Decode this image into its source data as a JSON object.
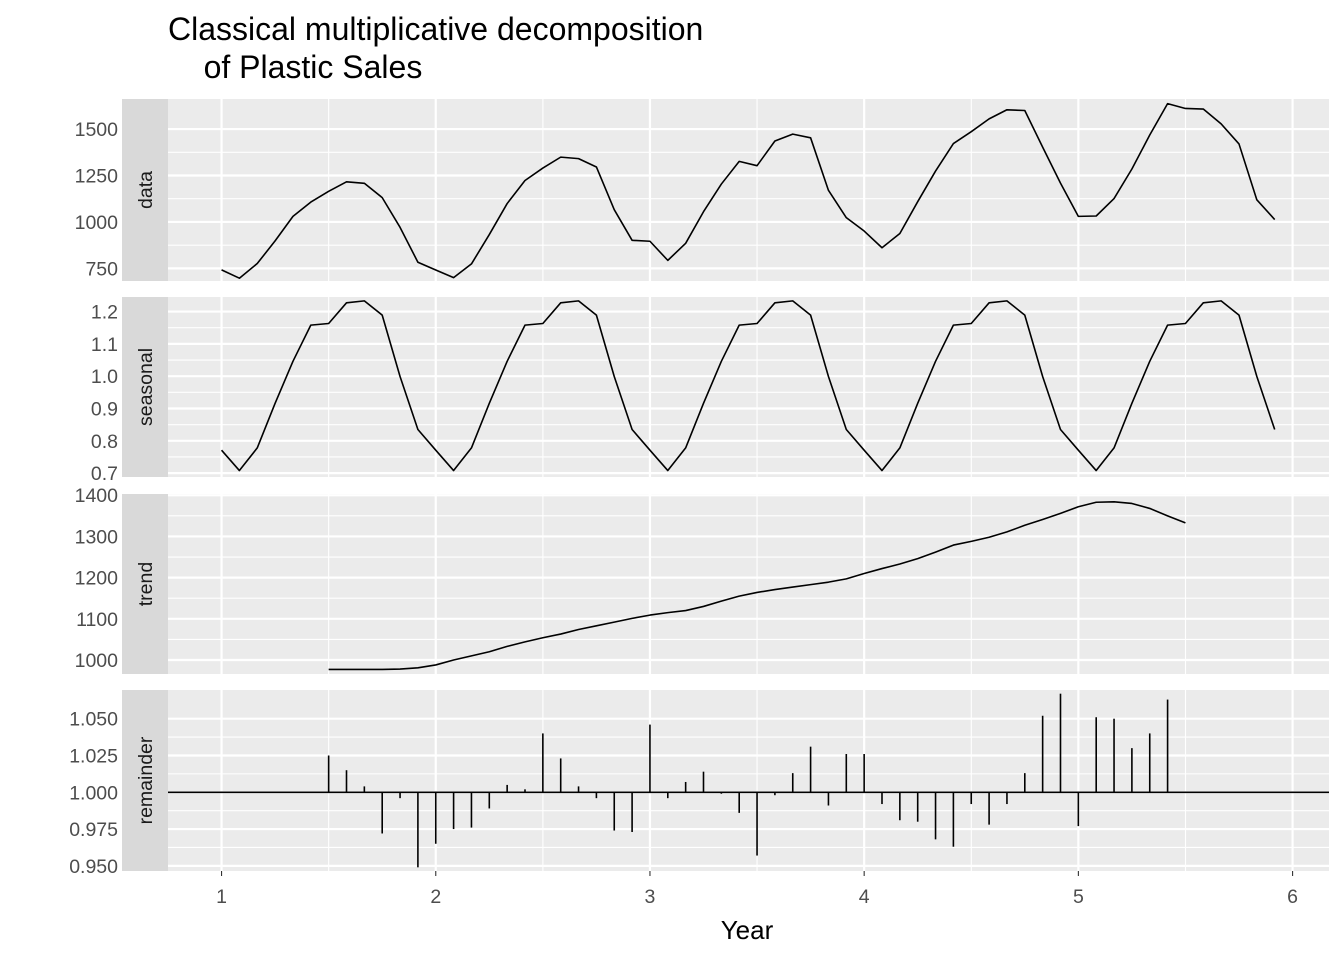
{
  "chart_data": {
    "type": "line",
    "title": "Classical multiplicative decomposition\n    of Plastic Sales",
    "xlabel": "Year",
    "x_ticks": [
      1,
      2,
      3,
      4,
      5,
      6
    ],
    "xlim": [
      0.75,
      6.17
    ],
    "x_start": 1,
    "x_step": 0.08333,
    "facets": [
      {
        "name": "data",
        "ylim": [
          682,
          1662
        ],
        "y_ticks": [
          750,
          1000,
          1250,
          1500
        ],
        "y_tick_labels": [
          "750",
          "1000",
          "1250",
          "1500"
        ],
        "style": "line",
        "values": [
          742,
          697,
          776,
          898,
          1030,
          1107,
          1165,
          1216,
          1208,
          1131,
          971,
          783,
          741,
          700,
          774,
          932,
          1099,
          1223,
          1290,
          1349,
          1341,
          1296,
          1066,
          901,
          896,
          793,
          885,
          1055,
          1204,
          1326,
          1303,
          1436,
          1473,
          1453,
          1170,
          1023,
          951,
          861,
          938,
          1109,
          1274,
          1422,
          1486,
          1555,
          1604,
          1600,
          1403,
          1209,
          1030,
          1032,
          1126,
          1285,
          1468,
          1637,
          1611,
          1608,
          1528,
          1420,
          1119,
          1013
        ]
      },
      {
        "name": "seasonal",
        "ylim": [
          0.688,
          1.245
        ],
        "y_ticks": [
          0.7,
          0.8,
          0.9,
          1.0,
          1.1,
          1.2
        ],
        "y_tick_labels": [
          "0.7",
          "0.8",
          "0.9",
          "1.0",
          "1.1",
          "1.2"
        ],
        "style": "line",
        "values": [
          0.771,
          0.708,
          0.778,
          0.916,
          1.046,
          1.158,
          1.163,
          1.227,
          1.233,
          1.189,
          0.999,
          0.835,
          0.771,
          0.708,
          0.778,
          0.916,
          1.046,
          1.158,
          1.163,
          1.227,
          1.233,
          1.189,
          0.999,
          0.835,
          0.771,
          0.708,
          0.778,
          0.916,
          1.046,
          1.158,
          1.163,
          1.227,
          1.233,
          1.189,
          0.999,
          0.835,
          0.771,
          0.708,
          0.778,
          0.916,
          1.046,
          1.158,
          1.163,
          1.227,
          1.233,
          1.189,
          0.999,
          0.835,
          0.771,
          0.708,
          0.778,
          0.916,
          1.046,
          1.158,
          1.163,
          1.227,
          1.233,
          1.189,
          0.999,
          0.835
        ]
      },
      {
        "name": "trend",
        "ylim": [
          966,
          1403
        ],
        "y_ticks": [
          1000,
          1100,
          1200,
          1300,
          1400
        ],
        "y_tick_labels": [
          "1000",
          "1100",
          "1200",
          "1300",
          "1400"
        ],
        "style": "line",
        "values": [
          null,
          null,
          null,
          null,
          null,
          null,
          977,
          977,
          977,
          977,
          978,
          981,
          988,
          1000,
          1010,
          1020,
          1033,
          1044,
          1054,
          1063,
          1074,
          1083,
          1092,
          1101,
          1109,
          1115,
          1120,
          1130,
          1143,
          1155,
          1164,
          1171,
          1177,
          1183,
          1189,
          1197,
          1210,
          1222,
          1233,
          1246,
          1262,
          1279,
          1288,
          1298,
          1311,
          1327,
          1341,
          1356,
          1372,
          1383,
          1384,
          1380,
          1368,
          1350,
          1333,
          null,
          null,
          null,
          null,
          null,
          null
        ]
      },
      {
        "name": "remainder",
        "ylim": [
          0.9465,
          1.0695
        ],
        "y_ticks": [
          0.95,
          0.975,
          1.0,
          1.025,
          1.05
        ],
        "y_tick_labels": [
          "0.950",
          "0.975",
          "1.000",
          "1.025",
          "1.050"
        ],
        "style": "spike",
        "baseline": 1.0,
        "values": [
          null,
          null,
          null,
          null,
          null,
          null,
          1.025,
          1.015,
          1.004,
          0.972,
          0.996,
          0.949,
          0.965,
          0.975,
          0.976,
          0.989,
          1.005,
          1.002,
          1.04,
          1.023,
          1.004,
          0.996,
          0.974,
          0.973,
          1.046,
          0.996,
          1.007,
          1.014,
          0.999,
          0.986,
          0.957,
          0.998,
          1.013,
          1.031,
          0.991,
          1.026,
          1.026,
          0.992,
          0.981,
          0.98,
          0.968,
          0.963,
          0.992,
          0.978,
          0.992,
          1.013,
          1.052,
          1.067,
          0.977,
          1.051,
          1.05,
          1.03,
          1.04,
          1.063,
          null,
          null,
          null,
          null,
          null,
          null
        ]
      }
    ]
  }
}
